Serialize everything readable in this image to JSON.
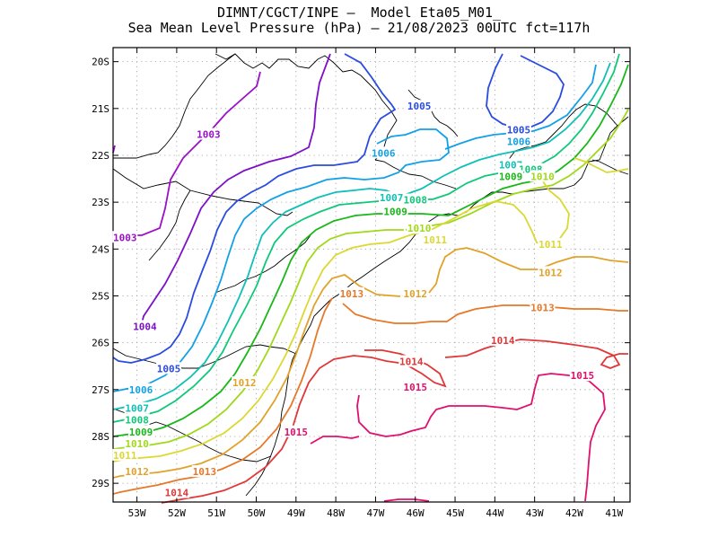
{
  "title_line1": "DIMNT/CGCT/INPE –  Model Eta05_M01_",
  "title_line2": "Sea Mean Level Pressure (hPa) – 21/08/2023 00UTC fct=117h",
  "chart_data": {
    "type": "contour_map",
    "title": "DIMNT/CGCT/INPE –  Model Eta05_M01_ / Sea Mean Level Pressure (hPa) – 21/08/2023 00UTC fct=117h",
    "variable": "Sea Mean Level Pressure",
    "units": "hPa",
    "xlim": [
      -53.6,
      -40.6
    ],
    "ylim": [
      -29.4,
      -19.7
    ],
    "grid": true,
    "x_ticks": [
      "53W",
      "52W",
      "51W",
      "50W",
      "49W",
      "48W",
      "47W",
      "46W",
      "45W",
      "44W",
      "43W",
      "42W",
      "41W"
    ],
    "y_ticks": [
      "20S",
      "21S",
      "22S",
      "23S",
      "24S",
      "25S",
      "26S",
      "27S",
      "28S",
      "29S"
    ],
    "contour_labels": [
      {
        "value": 1003,
        "text": "1003",
        "lon": -51.2,
        "lat": -21.55
      },
      {
        "value": 1003,
        "text": "1003",
        "lon": -53.3,
        "lat": -23.75
      },
      {
        "value": 1004,
        "text": "1004",
        "lon": -52.8,
        "lat": -25.65
      },
      {
        "value": 1005,
        "text": "1005",
        "lon": -45.9,
        "lat": -20.95
      },
      {
        "value": 1005,
        "text": "1005",
        "lon": -43.4,
        "lat": -21.45
      },
      {
        "value": 1005,
        "text": "1005",
        "lon": -52.2,
        "lat": -26.55
      },
      {
        "value": 1006,
        "text": "1006",
        "lon": -46.8,
        "lat": -21.95
      },
      {
        "value": 1006,
        "text": "1006",
        "lon": -43.4,
        "lat": -21.7
      },
      {
        "value": 1006,
        "text": "1006",
        "lon": -52.9,
        "lat": -27.0
      },
      {
        "value": 1007,
        "text": "1007",
        "lon": -46.6,
        "lat": -22.9
      },
      {
        "value": 1007,
        "text": "1007",
        "lon": -43.6,
        "lat": -22.2
      },
      {
        "value": 1007,
        "text": "1007",
        "lon": -53.0,
        "lat": -27.4
      },
      {
        "value": 1008,
        "text": "1008",
        "lon": -46.0,
        "lat": -22.95
      },
      {
        "value": 1008,
        "text": "1008",
        "lon": -43.1,
        "lat": -22.3
      },
      {
        "value": 1008,
        "text": "1008",
        "lon": -53.0,
        "lat": -27.65
      },
      {
        "value": 1009,
        "text": "1009",
        "lon": -46.5,
        "lat": -23.2
      },
      {
        "value": 1009,
        "text": "1009",
        "lon": -43.6,
        "lat": -22.45
      },
      {
        "value": 1009,
        "text": "1009",
        "lon": -52.9,
        "lat": -27.9
      },
      {
        "value": 1010,
        "text": "1010",
        "lon": -45.9,
        "lat": -23.55
      },
      {
        "value": 1010,
        "text": "1010",
        "lon": -42.8,
        "lat": -22.45
      },
      {
        "value": 1010,
        "text": "1010",
        "lon": -53.0,
        "lat": -28.15
      },
      {
        "value": 1011,
        "text": "1011",
        "lon": -45.5,
        "lat": -23.8
      },
      {
        "value": 1011,
        "text": "1011",
        "lon": -42.6,
        "lat": -23.9
      },
      {
        "value": 1011,
        "text": "1011",
        "lon": -53.3,
        "lat": -28.4
      },
      {
        "value": 1012,
        "text": "1012",
        "lon": -46.0,
        "lat": -24.95
      },
      {
        "value": 1012,
        "text": "1012",
        "lon": -42.6,
        "lat": -24.5
      },
      {
        "value": 1012,
        "text": "1012",
        "lon": -50.3,
        "lat": -26.85
      },
      {
        "value": 1012,
        "text": "1012",
        "lon": -53.0,
        "lat": -28.75
      },
      {
        "value": 1013,
        "text": "1013",
        "lon": -47.6,
        "lat": -24.95
      },
      {
        "value": 1013,
        "text": "1013",
        "lon": -42.8,
        "lat": -25.25
      },
      {
        "value": 1013,
        "text": "1013",
        "lon": -51.3,
        "lat": -28.75
      },
      {
        "value": 1014,
        "text": "1014",
        "lon": -43.8,
        "lat": -25.95
      },
      {
        "value": 1014,
        "text": "1014",
        "lon": -46.1,
        "lat": -26.4
      },
      {
        "value": 1014,
        "text": "1014",
        "lon": -52.0,
        "lat": -29.2
      },
      {
        "value": 1015,
        "text": "1015",
        "lon": -46.0,
        "lat": -26.95
      },
      {
        "value": 1015,
        "text": "1015",
        "lon": -41.8,
        "lat": -26.7
      },
      {
        "value": 1015,
        "text": "1015",
        "lon": -49.0,
        "lat": -27.9
      }
    ],
    "contour_colors": {
      "1003": "#9b10c8",
      "1004": "#7d10c8",
      "1005": "#2a4be0",
      "1006": "#12a0e6",
      "1007": "#10c0b8",
      "1008": "#10c87a",
      "1009": "#18b818",
      "1010": "#a0d81a",
      "1011": "#dcd832",
      "1012": "#e0a22a",
      "1013": "#e67828",
      "1014": "#e03838",
      "1015": "#e0106e"
    }
  }
}
